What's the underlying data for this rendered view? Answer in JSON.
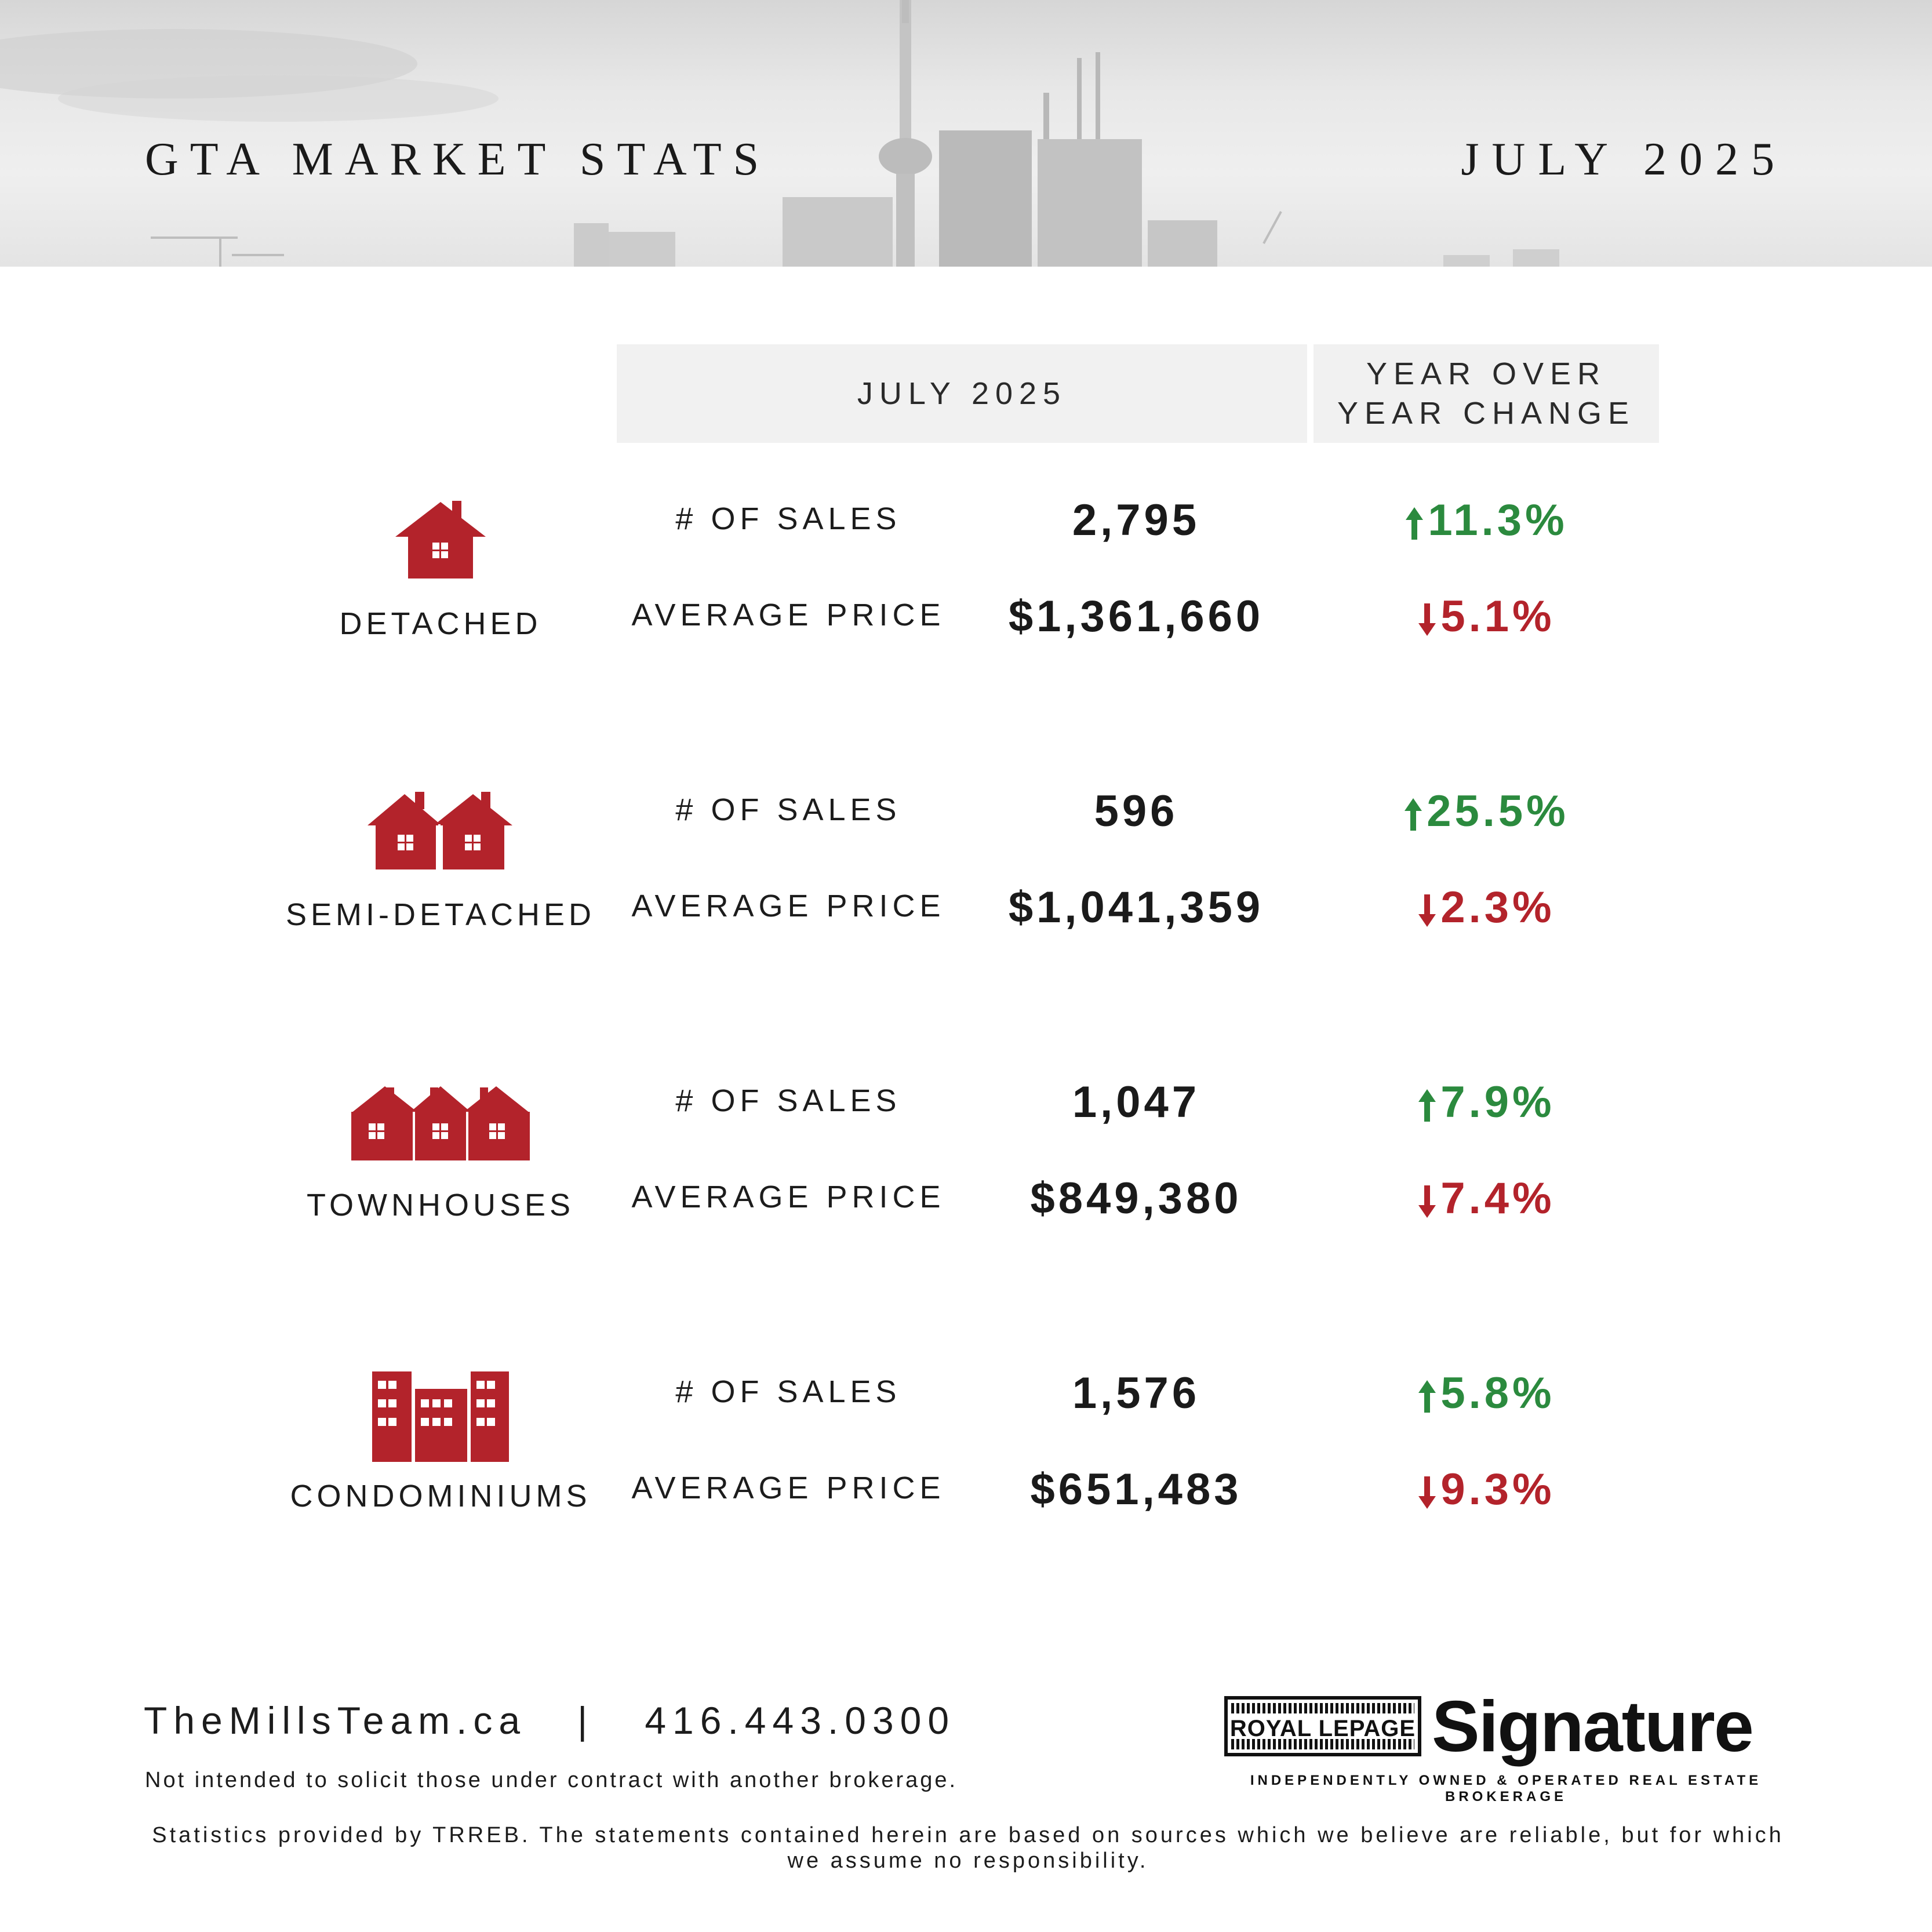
{
  "header": {
    "title": "GTA MARKET STATS",
    "date": "JULY 2025"
  },
  "columns": {
    "current": "JULY 2025",
    "change": "YEAR OVER\nYEAR CHANGE"
  },
  "categories": [
    {
      "name": "DETACHED",
      "icon": "single-house-icon",
      "sales_label": "# OF SALES",
      "sales": "2,795",
      "sales_change": "11.3%",
      "sales_dir": "up",
      "price_label": "AVERAGE PRICE",
      "price": "$1,361,660",
      "price_change": "5.1%",
      "price_dir": "down"
    },
    {
      "name": "SEMI-DETACHED",
      "icon": "semi-detached-house-icon",
      "sales_label": "# OF SALES",
      "sales": "596",
      "sales_change": "25.5%",
      "sales_dir": "up",
      "price_label": "AVERAGE PRICE",
      "price": "$1,041,359",
      "price_change": "2.3%",
      "price_dir": "down"
    },
    {
      "name": "TOWNHOUSES",
      "icon": "townhouse-icon",
      "sales_label": "# OF SALES",
      "sales": "1,047",
      "sales_change": "7.9%",
      "sales_dir": "up",
      "price_label": "AVERAGE PRICE",
      "price": "$849,380",
      "price_change": "7.4%",
      "price_dir": "down"
    },
    {
      "name": "CONDOMINIUMS",
      "icon": "condominium-icon",
      "sales_label": "# OF SALES",
      "sales": "1,576",
      "sales_change": "5.8%",
      "sales_dir": "up",
      "price_label": "AVERAGE PRICE",
      "price": "$651,483",
      "price_change": "9.3%",
      "price_dir": "down"
    }
  ],
  "colors": {
    "icon_red": "#b3232b",
    "up_green": "#2b8a3e",
    "down_red": "#b3232b",
    "header_bg": "#f1f1f1"
  },
  "footer": {
    "website": "TheMillsTeam.ca",
    "separator": "|",
    "phone": "416.443.0300",
    "disclaimer": "Not intended to solicit those under contract with another brokerage.",
    "statistics_note": "Statistics provided by TRREB. The statements contained herein are based on sources which we believe are reliable, but for which we assume no responsibility."
  },
  "brand": {
    "royal": "ROYAL LEPAGE",
    "signature": "Signature",
    "tagline": "INDEPENDENTLY OWNED & OPERATED REAL ESTATE BROKERAGE"
  }
}
